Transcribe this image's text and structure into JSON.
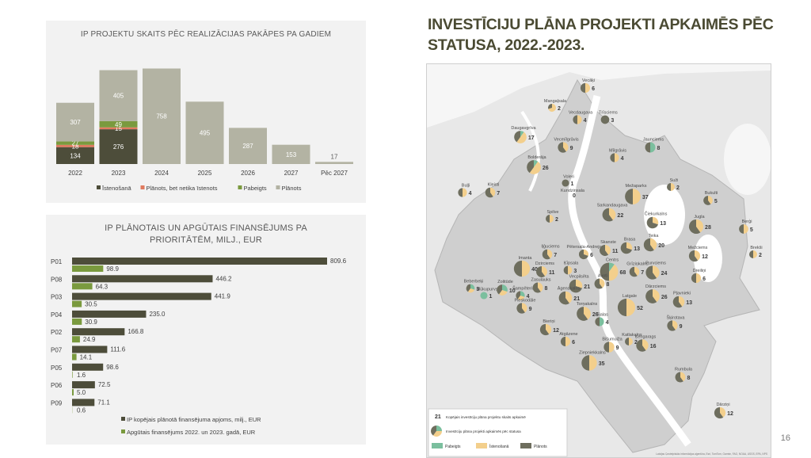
{
  "page_number": "16",
  "main_title": "INVESTĪCIJU PLĀNA PROJEKTI APKAIMĒS PĒC STATUSA, 2022.-2023.",
  "colors": {
    "dark": "#4d4d3a",
    "red": "#e07a5f",
    "green": "#7a9a3e",
    "beige": "#b3b3a3",
    "pie_green": "#7bbf9e",
    "pie_yellow": "#f3cf8c",
    "pie_gray": "#6e6e5e",
    "water": "#ffffff",
    "land": "#e8e8e8",
    "city": "#cfcfcf"
  },
  "chart_data": [
    {
      "type": "bar",
      "title": "IP PROJEKTU SKAITS PĒC REALIZĀCIJAS PAKĀPES PA GADIEM",
      "categories": [
        "2022",
        "2023",
        "2024",
        "2025",
        "2026",
        "2027",
        "Pēc 2027"
      ],
      "stacked": true,
      "series": [
        {
          "name": "Īstenošanā",
          "values": [
            134,
            276,
            0,
            0,
            0,
            0,
            0
          ],
          "color": "#4d4d3a"
        },
        {
          "name": "Plānots, bet netika īstenots",
          "values": [
            18,
            15,
            0,
            0,
            0,
            0,
            0
          ],
          "color": "#e07a5f"
        },
        {
          "name": "Pabeigts",
          "values": [
            27,
            49,
            0,
            0,
            0,
            0,
            0
          ],
          "color": "#7a9a3e"
        },
        {
          "name": "Plānots",
          "values": [
            307,
            405,
            758,
            495,
            287,
            153,
            17
          ],
          "color": "#b3b3a3"
        }
      ],
      "legend_position": "bottom"
    },
    {
      "type": "bar",
      "orientation": "horizontal",
      "title_lines": [
        "IP PLĀNOTAIS UN APGŪTAIS FINANSĒJUMS PA",
        "PRIORITĀTĒM, MILJ., EUR"
      ],
      "categories": [
        "P01",
        "P08",
        "P03",
        "P04",
        "P02",
        "P07",
        "P05",
        "P06",
        "P09"
      ],
      "series": [
        {
          "name": "IP kopējais plānotā finansējuma apjoms, milj., EUR",
          "values": [
            809.6,
            446.2,
            441.9,
            235.0,
            166.8,
            111.6,
            98.6,
            72.5,
            71.1
          ],
          "labels": [
            "809.6",
            "446.2",
            "441.9",
            "235.0",
            "166.8",
            "111.6",
            "98.6",
            "72.5",
            "71.1"
          ],
          "color": "#4d4d3a"
        },
        {
          "name": "Apgūtais finansējums 2022. un 2023. gadā, EUR",
          "values": [
            98.9,
            64.3,
            30.5,
            30.9,
            24.9,
            14.1,
            1.6,
            5.0,
            0.6
          ],
          "labels": [
            "98.9",
            "64.3",
            "30.5",
            "30.9",
            "24.9",
            "14.1",
            "1.6",
            "5.0",
            "0.6"
          ],
          "color": "#7a9a3e"
        }
      ],
      "xlim": [
        0,
        820
      ],
      "legend_position": "bottom"
    }
  ],
  "map": {
    "neighbourhoods": [
      {
        "name": "Vecāķi",
        "count": "6",
        "mix": [
          0,
          0.5,
          0.5
        ]
      },
      {
        "name": "Mangaļsala",
        "count": "2",
        "mix": [
          0,
          0.7,
          0.3
        ]
      },
      {
        "name": "Vecdaugava",
        "count": "4",
        "mix": [
          0,
          0.5,
          0.5
        ]
      },
      {
        "name": "Trīsciems",
        "count": "3",
        "mix": [
          0,
          0,
          1
        ]
      },
      {
        "name": "Daugavgrīva",
        "count": "17",
        "mix": [
          0.1,
          0.5,
          0.4
        ]
      },
      {
        "name": "Vecmīlgrāvis",
        "count": "9",
        "mix": [
          0,
          0.4,
          0.6
        ]
      },
      {
        "name": "Jaunciems",
        "count": "8",
        "mix": [
          0.5,
          0,
          0.5
        ]
      },
      {
        "name": "Mīlgrāvis",
        "count": "4",
        "mix": [
          0,
          0.5,
          0.5
        ]
      },
      {
        "name": "Bolderāja",
        "count": "26",
        "mix": [
          0.1,
          0.5,
          0.4
        ]
      },
      {
        "name": "Voleri",
        "count": "1",
        "mix": [
          0,
          0,
          1
        ]
      },
      {
        "name": "Buļļi",
        "count": "4",
        "mix": [
          0,
          0.5,
          0.5
        ]
      },
      {
        "name": "Kleisti",
        "count": "7",
        "mix": [
          0,
          0.4,
          0.6
        ]
      },
      {
        "name": "Kundzinsala",
        "count": "0",
        "mix": [
          0,
          0,
          0
        ]
      },
      {
        "name": "Mežaparks",
        "count": "37",
        "mix": [
          0,
          0.5,
          0.5
        ]
      },
      {
        "name": "Suži",
        "count": "2",
        "mix": [
          0,
          0.5,
          0.5
        ]
      },
      {
        "name": "Bukulti",
        "count": "5",
        "mix": [
          0,
          0.4,
          0.6
        ]
      },
      {
        "name": "Spilve",
        "count": "2",
        "mix": [
          0,
          0.5,
          0.5
        ]
      },
      {
        "name": "Sarkandaugava",
        "count": "22",
        "mix": [
          0,
          0.4,
          0.6
        ]
      },
      {
        "name": "Čiekurkalns",
        "count": "13",
        "mix": [
          0,
          0.3,
          0.7
        ]
      },
      {
        "name": "Jugla",
        "count": "28",
        "mix": [
          0,
          0.4,
          0.6
        ]
      },
      {
        "name": "Berģi",
        "count": "5",
        "mix": [
          0,
          0.5,
          0.5
        ]
      },
      {
        "name": "Brekši",
        "count": "2",
        "mix": [
          0,
          0.5,
          0.5
        ]
      },
      {
        "name": "Iļģuciems",
        "count": "7",
        "mix": [
          0,
          0.4,
          0.6
        ]
      },
      {
        "name": "Pētersala-Andrejsala",
        "count": "6",
        "mix": [
          0,
          0.3,
          0.7
        ]
      },
      {
        "name": "Skanste",
        "count": "11",
        "mix": [
          0,
          0.4,
          0.6
        ]
      },
      {
        "name": "Brasa",
        "count": "13",
        "mix": [
          0,
          0.3,
          0.7
        ]
      },
      {
        "name": "Teika",
        "count": "20",
        "mix": [
          0,
          0.4,
          0.6
        ]
      },
      {
        "name": "Mežciems",
        "count": "12",
        "mix": [
          0,
          0.4,
          0.6
        ]
      },
      {
        "name": "Imanta",
        "count": "40",
        "mix": [
          0,
          0.5,
          0.5
        ]
      },
      {
        "name": "Dzirciems",
        "count": "11",
        "mix": [
          0,
          0.4,
          0.6
        ]
      },
      {
        "name": "Ķīpsala",
        "count": "3",
        "mix": [
          0,
          0.5,
          0.5
        ]
      },
      {
        "name": "Centrs",
        "count": "68",
        "mix": [
          0.1,
          0.4,
          0.5
        ]
      },
      {
        "name": "Grīziņkalns",
        "count": "7",
        "mix": [
          0,
          0.4,
          0.6
        ]
      },
      {
        "name": "Purvciems",
        "count": "24",
        "mix": [
          0,
          0.4,
          0.6
        ]
      },
      {
        "name": "Dreiliņi",
        "count": "6",
        "mix": [
          0,
          0.5,
          0.5
        ]
      },
      {
        "name": "Beberbeķi",
        "count": "3",
        "mix": [
          0.3,
          0.3,
          0.4
        ]
      },
      {
        "name": "Mūkupurvs",
        "count": "1",
        "mix": [
          1,
          0,
          0
        ]
      },
      {
        "name": "Zolitūde",
        "count": "10",
        "mix": [
          0.3,
          0.3,
          0.4
        ]
      },
      {
        "name": "Šampēteris",
        "count": "4",
        "mix": [
          0.3,
          0.3,
          0.4
        ]
      },
      {
        "name": "Zasulauks",
        "count": "8",
        "mix": [
          0,
          0.4,
          0.6
        ]
      },
      {
        "name": "Vecpilsēta",
        "count": "21",
        "mix": [
          0,
          0.3,
          0.7
        ]
      },
      {
        "name": "Avoti",
        "count": "8",
        "mix": [
          0,
          0.4,
          0.6
        ]
      },
      {
        "name": "Dārzciems",
        "count": "26",
        "mix": [
          0,
          0.4,
          0.6
        ]
      },
      {
        "name": "Pļavnieki",
        "count": "13",
        "mix": [
          0,
          0.4,
          0.6
        ]
      },
      {
        "name": "Pleskodāle",
        "count": "9",
        "mix": [
          0,
          0.4,
          0.6
        ]
      },
      {
        "name": "Āgenskalns",
        "count": "21",
        "mix": [
          0,
          0.4,
          0.6
        ]
      },
      {
        "name": "Latgale",
        "count": "52",
        "mix": [
          0,
          0.5,
          0.5
        ]
      },
      {
        "name": "Torņakalns",
        "count": "26",
        "mix": [
          0,
          0.4,
          0.6
        ]
      },
      {
        "name": "Salas",
        "count": "4",
        "mix": [
          0.5,
          0,
          0.5
        ]
      },
      {
        "name": "Šķirotava",
        "count": "9",
        "mix": [
          0,
          0.4,
          0.6
        ]
      },
      {
        "name": "Bieriņi",
        "count": "12",
        "mix": [
          0,
          0.4,
          0.6
        ]
      },
      {
        "name": "Atgāzene",
        "count": "6",
        "mix": [
          0,
          0.5,
          0.5
        ]
      },
      {
        "name": "Katlakalns",
        "count": "2",
        "mix": [
          0,
          0.5,
          0.5
        ]
      },
      {
        "name": "Bišumuiža",
        "count": "9",
        "mix": [
          0,
          0.5,
          0.5
        ]
      },
      {
        "name": "Ķengarags",
        "count": "16",
        "mix": [
          0,
          0.4,
          0.6
        ]
      },
      {
        "name": "Ziepniekkalns",
        "count": "35",
        "mix": [
          0,
          0.5,
          0.5
        ]
      },
      {
        "name": "Rumbula",
        "count": "8",
        "mix": [
          0,
          0.4,
          0.6
        ]
      },
      {
        "name": "Dārziņi",
        "count": "12",
        "mix": [
          0,
          0.4,
          0.6
        ]
      }
    ],
    "legend": {
      "sample_count": "21",
      "count_label": "Kopējais investīciju plāna projektu skaits apkaimē",
      "pie_label": "Investīciju plāna projekti apkaimēs pēc statusa",
      "status": [
        "Pabeigts",
        "Īstenošanā",
        "Plānots"
      ]
    },
    "credits": "Latvijas Ģeotelpiskās informācijas aģentūra, Esri, TomTom, Garmin, FAO, NOAA, USGS, EPA, NPS"
  }
}
